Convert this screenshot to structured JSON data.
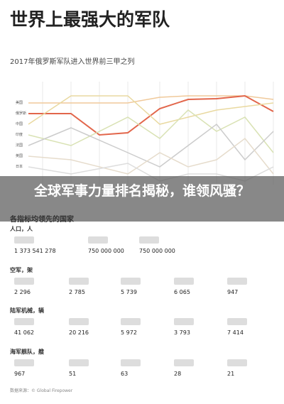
{
  "header": {
    "title": "世界上最强大的军队",
    "subtitle": "2017年俄罗斯军队进入世界前三甲之列"
  },
  "chart": {
    "countries": [
      "美国",
      "俄罗斯",
      "中国",
      "印度",
      "法国",
      "英国",
      "日本"
    ]
  },
  "banner": {
    "text": "全球军事力量排名揭秘，谁领风骚？"
  },
  "sections": [
    {
      "heading": "各指标均领先的国家",
      "sub": "人口，人",
      "items": [
        "1 373 541 278",
        "750 000 000",
        "750 000 000"
      ]
    },
    {
      "heading": "空军，架",
      "items": [
        "2 296",
        "2 785",
        "5 739",
        "6 065",
        "947"
      ]
    },
    {
      "heading": "陆军机械，辆",
      "items": [
        "41 062",
        "20 216",
        "5 972",
        "3 793",
        "7 414"
      ]
    },
    {
      "heading": "海军舰队，艘",
      "items": [
        "967",
        "51",
        "63",
        "28",
        "21"
      ]
    }
  ],
  "footer": {
    "source": "数据来源：© Global Firepower"
  }
}
